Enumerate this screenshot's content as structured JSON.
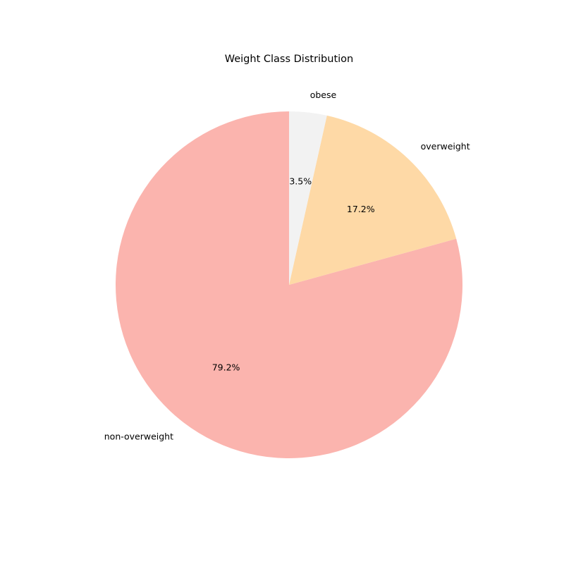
{
  "chart_data": {
    "type": "pie",
    "title": "Weight Class Distribution",
    "start_angle_deg": 90,
    "direction": "counterclockwise",
    "slices": [
      {
        "label": "non-overweight",
        "value": 79.2,
        "pct_label": "79.2%",
        "color": "#fbb4ae"
      },
      {
        "label": "overweight",
        "value": 17.2,
        "pct_label": "17.2%",
        "color": "#fed9a6"
      },
      {
        "label": "obese",
        "value": 3.5,
        "pct_label": "3.5%",
        "color": "#f2f2f2"
      }
    ]
  }
}
